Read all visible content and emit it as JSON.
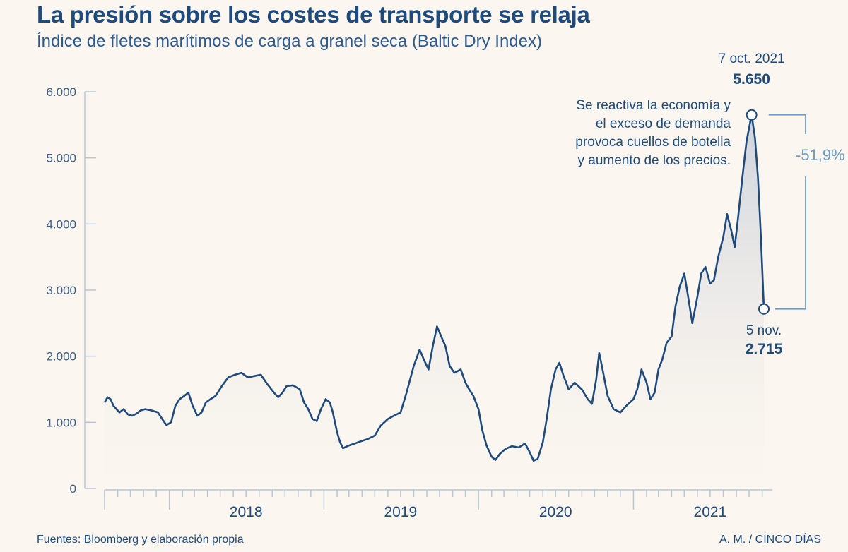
{
  "title": "La presión sobre los costes de transporte se relaja",
  "subtitle": "Índice de fletes marítimos de carga a granel seca (Baltic Dry Index)",
  "footer": {
    "source": "Fuentes: Bloomberg y elaboración propia",
    "credit": "A. M. / CINCO DÍAS"
  },
  "colors": {
    "line": "#1e4a7c",
    "text": "#1e4a7c",
    "accent": "#6d9cc8",
    "axis": "#b9c6d6",
    "background": "#fbf6ef"
  },
  "chart_data": {
    "type": "area",
    "title": "La presión sobre los costes de transporte se relaja",
    "subtitle": "Índice de fletes marítimos de carga a granel seca (Baltic Dry Index)",
    "xlabel": "",
    "ylabel": "",
    "ylim": [
      0,
      6000
    ],
    "yticks": [
      0,
      1000,
      2000,
      3000,
      4000,
      5000,
      6000
    ],
    "ytick_labels": [
      "0",
      "1.000",
      "2.000",
      "3.000",
      "4.000",
      "5.000",
      "6.000"
    ],
    "xlim": [
      "2017-08-01",
      "2021-11-25"
    ],
    "year_labels": [
      {
        "label": "2018",
        "date": "2018-07-01"
      },
      {
        "label": "2019",
        "date": "2019-07-01"
      },
      {
        "label": "2020",
        "date": "2020-07-01"
      },
      {
        "label": "2021",
        "date": "2021-07-01"
      }
    ],
    "year_boundaries": [
      "2018-01-01",
      "2019-01-01",
      "2020-01-01",
      "2021-01-01"
    ],
    "grid": false,
    "series": [
      {
        "values": [
          [
            "2017-08-01",
            1300
          ],
          [
            "2017-08-08",
            1380
          ],
          [
            "2017-08-15",
            1350
          ],
          [
            "2017-08-22",
            1250
          ],
          [
            "2017-09-05",
            1150
          ],
          [
            "2017-09-15",
            1200
          ],
          [
            "2017-09-25",
            1120
          ],
          [
            "2017-10-05",
            1100
          ],
          [
            "2017-10-15",
            1130
          ],
          [
            "2017-10-25",
            1180
          ],
          [
            "2017-11-05",
            1200
          ],
          [
            "2017-11-20",
            1180
          ],
          [
            "2017-12-05",
            1150
          ],
          [
            "2017-12-15",
            1050
          ],
          [
            "2017-12-25",
            960
          ],
          [
            "2018-01-05",
            1000
          ],
          [
            "2018-01-15",
            1250
          ],
          [
            "2018-01-25",
            1350
          ],
          [
            "2018-02-05",
            1400
          ],
          [
            "2018-02-15",
            1450
          ],
          [
            "2018-02-25",
            1250
          ],
          [
            "2018-03-08",
            1100
          ],
          [
            "2018-03-18",
            1150
          ],
          [
            "2018-03-28",
            1300
          ],
          [
            "2018-04-08",
            1350
          ],
          [
            "2018-04-20",
            1400
          ],
          [
            "2018-05-05",
            1550
          ],
          [
            "2018-05-20",
            1680
          ],
          [
            "2018-06-05",
            1720
          ],
          [
            "2018-06-20",
            1750
          ],
          [
            "2018-07-05",
            1680
          ],
          [
            "2018-07-20",
            1700
          ],
          [
            "2018-08-05",
            1720
          ],
          [
            "2018-08-20",
            1580
          ],
          [
            "2018-09-05",
            1450
          ],
          [
            "2018-09-15",
            1380
          ],
          [
            "2018-09-25",
            1450
          ],
          [
            "2018-10-05",
            1550
          ],
          [
            "2018-10-20",
            1560
          ],
          [
            "2018-11-05",
            1500
          ],
          [
            "2018-11-15",
            1300
          ],
          [
            "2018-11-25",
            1200
          ],
          [
            "2018-12-05",
            1050
          ],
          [
            "2018-12-15",
            1020
          ],
          [
            "2018-12-25",
            1200
          ],
          [
            "2019-01-05",
            1350
          ],
          [
            "2019-01-15",
            1300
          ],
          [
            "2019-01-22",
            1150
          ],
          [
            "2019-02-01",
            850
          ],
          [
            "2019-02-08",
            700
          ],
          [
            "2019-02-15",
            610
          ],
          [
            "2019-03-01",
            650
          ],
          [
            "2019-03-15",
            680
          ],
          [
            "2019-04-01",
            720
          ],
          [
            "2019-04-15",
            750
          ],
          [
            "2019-05-01",
            800
          ],
          [
            "2019-05-15",
            950
          ],
          [
            "2019-06-01",
            1050
          ],
          [
            "2019-06-15",
            1100
          ],
          [
            "2019-07-01",
            1150
          ],
          [
            "2019-07-15",
            1450
          ],
          [
            "2019-08-01",
            1850
          ],
          [
            "2019-08-15",
            2100
          ],
          [
            "2019-08-25",
            1950
          ],
          [
            "2019-09-05",
            1800
          ],
          [
            "2019-09-15",
            2150
          ],
          [
            "2019-09-25",
            2450
          ],
          [
            "2019-10-05",
            2300
          ],
          [
            "2019-10-15",
            2150
          ],
          [
            "2019-10-25",
            1850
          ],
          [
            "2019-11-05",
            1750
          ],
          [
            "2019-11-20",
            1800
          ],
          [
            "2019-12-01",
            1600
          ],
          [
            "2019-12-10",
            1500
          ],
          [
            "2019-12-20",
            1400
          ],
          [
            "2020-01-01",
            1200
          ],
          [
            "2020-01-10",
            880
          ],
          [
            "2020-01-20",
            650
          ],
          [
            "2020-02-01",
            480
          ],
          [
            "2020-02-10",
            430
          ],
          [
            "2020-02-20",
            520
          ],
          [
            "2020-03-05",
            600
          ],
          [
            "2020-03-20",
            640
          ],
          [
            "2020-04-05",
            620
          ],
          [
            "2020-04-20",
            680
          ],
          [
            "2020-05-01",
            550
          ],
          [
            "2020-05-10",
            420
          ],
          [
            "2020-05-20",
            450
          ],
          [
            "2020-06-01",
            700
          ],
          [
            "2020-06-10",
            1050
          ],
          [
            "2020-06-20",
            1500
          ],
          [
            "2020-07-01",
            1800
          ],
          [
            "2020-07-10",
            1900
          ],
          [
            "2020-07-20",
            1700
          ],
          [
            "2020-08-01",
            1500
          ],
          [
            "2020-08-15",
            1600
          ],
          [
            "2020-09-01",
            1500
          ],
          [
            "2020-09-15",
            1350
          ],
          [
            "2020-09-25",
            1280
          ],
          [
            "2020-10-05",
            1650
          ],
          [
            "2020-10-12",
            2050
          ],
          [
            "2020-10-20",
            1800
          ],
          [
            "2020-11-01",
            1400
          ],
          [
            "2020-11-15",
            1200
          ],
          [
            "2020-12-01",
            1150
          ],
          [
            "2020-12-15",
            1250
          ],
          [
            "2021-01-01",
            1350
          ],
          [
            "2021-01-10",
            1500
          ],
          [
            "2021-01-20",
            1800
          ],
          [
            "2021-02-01",
            1600
          ],
          [
            "2021-02-10",
            1350
          ],
          [
            "2021-02-20",
            1450
          ],
          [
            "2021-03-01",
            1800
          ],
          [
            "2021-03-10",
            1950
          ],
          [
            "2021-03-20",
            2200
          ],
          [
            "2021-04-01",
            2300
          ],
          [
            "2021-04-10",
            2750
          ],
          [
            "2021-04-20",
            3050
          ],
          [
            "2021-05-01",
            3250
          ],
          [
            "2021-05-10",
            2900
          ],
          [
            "2021-05-20",
            2500
          ],
          [
            "2021-06-01",
            2900
          ],
          [
            "2021-06-10",
            3250
          ],
          [
            "2021-06-20",
            3350
          ],
          [
            "2021-07-01",
            3100
          ],
          [
            "2021-07-10",
            3150
          ],
          [
            "2021-07-20",
            3500
          ],
          [
            "2021-08-01",
            3800
          ],
          [
            "2021-08-10",
            4150
          ],
          [
            "2021-08-20",
            3900
          ],
          [
            "2021-08-28",
            3650
          ],
          [
            "2021-09-05",
            4100
          ],
          [
            "2021-09-15",
            4700
          ],
          [
            "2021-09-25",
            5250
          ],
          [
            "2021-10-07",
            5650
          ],
          [
            "2021-10-15",
            5300
          ],
          [
            "2021-10-22",
            4700
          ],
          [
            "2021-10-29",
            3800
          ],
          [
            "2021-11-05",
            2715
          ]
        ]
      }
    ],
    "annotations": [
      {
        "date_label": "7 oct. 2021",
        "value_label": "5.650",
        "x": "2021-10-07",
        "y": 5650
      },
      {
        "date_label": "5 nov.",
        "value_label": "2.715",
        "x": "2021-11-05",
        "y": 2715
      }
    ],
    "note_lines": [
      "Se reactiva la economía y",
      "el exceso de demanda",
      "provoca cuellos de botella",
      "y aumento de los precios."
    ],
    "change_label": "-51,9%"
  }
}
